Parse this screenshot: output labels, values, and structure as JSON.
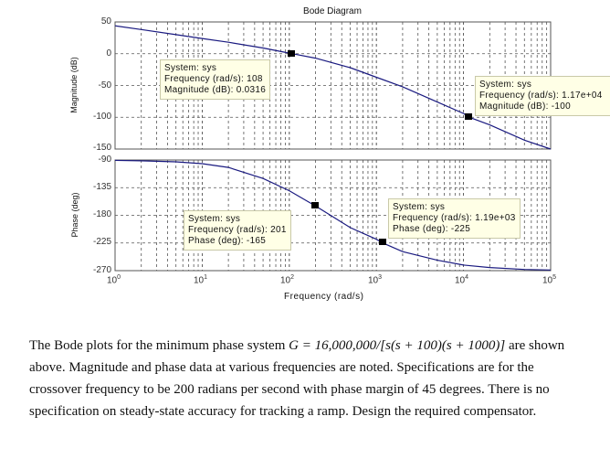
{
  "figure": {
    "title": "Bode Diagram",
    "magnitude_ylabel": "Magnitude (dB)",
    "phase_ylabel": "Phase (deg)",
    "xlabel": "Frequency  (rad/s)",
    "magnitude_ticks": [
      "50",
      "0",
      "-50",
      "-100",
      "-150"
    ],
    "phase_ticks": [
      "-90",
      "-135",
      "-180",
      "-225",
      "-270"
    ],
    "x_ticks": [
      {
        "base": "10",
        "exp": "0"
      },
      {
        "base": "10",
        "exp": "1"
      },
      {
        "base": "10",
        "exp": "2"
      },
      {
        "base": "10",
        "exp": "3"
      },
      {
        "base": "10",
        "exp": "4"
      },
      {
        "base": "10",
        "exp": "5"
      }
    ],
    "line_color": "#1a1a80",
    "tooltips": {
      "mag1": {
        "line1": "System: sys",
        "line2": "Frequency (rad/s): 108",
        "line3": "Magnitude (dB): 0.0316"
      },
      "mag2": {
        "line1": "System: sys",
        "line2": "Frequency (rad/s): 1.17e+04",
        "line3": "Magnitude (dB): -100"
      },
      "ph1": {
        "line1": "System: sys",
        "line2": "Frequency (rad/s): 201",
        "line3": "Phase (deg): -165"
      },
      "ph2": {
        "line1": "System: sys",
        "line2": "Frequency (rad/s): 1.19e+03",
        "line3": "Phase (deg): -225"
      }
    }
  },
  "problem": {
    "intro": "The Bode plots for the minimum phase system ",
    "equation": "G = 16,000,000/[s(s + 100)(s + 1000)]",
    "after_eq": " are shown above. Magnitude and phase data at various frequencies are noted. Specifications are for the crossover frequency to be 200 radians per second with phase margin of 45 degrees. There is no specification on steady-state accuracy for tracking a ramp. Design the required compensator."
  },
  "chart_data": [
    {
      "type": "line",
      "title": "Bode Diagram",
      "xlabel": "Frequency (rad/s)",
      "ylabel": "Magnitude (dB)",
      "xscale": "log",
      "xlim": [
        1,
        100000
      ],
      "ylim": [
        -150,
        50
      ],
      "grid": true,
      "x": [
        1,
        2,
        5,
        10,
        20,
        50,
        100,
        108,
        200,
        500,
        1000,
        2000,
        5000,
        10000,
        11700,
        20000,
        50000,
        100000
      ],
      "values": [
        44,
        38,
        30,
        24,
        18,
        9,
        1,
        0.0316,
        -7,
        -22,
        -37,
        -52,
        -76,
        -94,
        -100,
        -112,
        -136,
        -150
      ],
      "annotations": [
        {
          "x": 108,
          "y": 0.0316,
          "label": "System: sys\nFrequency (rad/s): 108\nMagnitude (dB): 0.0316"
        },
        {
          "x": 11700,
          "y": -100,
          "label": "System: sys\nFrequency (rad/s): 1.17e+04\nMagnitude (dB): -100"
        }
      ]
    },
    {
      "type": "line",
      "xlabel": "Frequency (rad/s)",
      "ylabel": "Phase (deg)",
      "xscale": "log",
      "xlim": [
        1,
        100000
      ],
      "ylim": [
        -270,
        -90
      ],
      "grid": true,
      "x": [
        1,
        2,
        5,
        10,
        20,
        50,
        100,
        201,
        500,
        1000,
        1190,
        2000,
        5000,
        10000,
        20000,
        50000,
        100000
      ],
      "values": [
        -90.6,
        -91.3,
        -93,
        -96,
        -102,
        -120,
        -140,
        -165,
        -200,
        -219,
        -225,
        -239,
        -253,
        -261,
        -265,
        -268,
        -269
      ],
      "annotations": [
        {
          "x": 201,
          "y": -165,
          "label": "System: sys\nFrequency (rad/s): 201\nPhase (deg): -165"
        },
        {
          "x": 1190,
          "y": -225,
          "label": "System: sys\nFrequency (rad/s): 1.19e+03\nPhase (deg): -225"
        }
      ]
    }
  ]
}
